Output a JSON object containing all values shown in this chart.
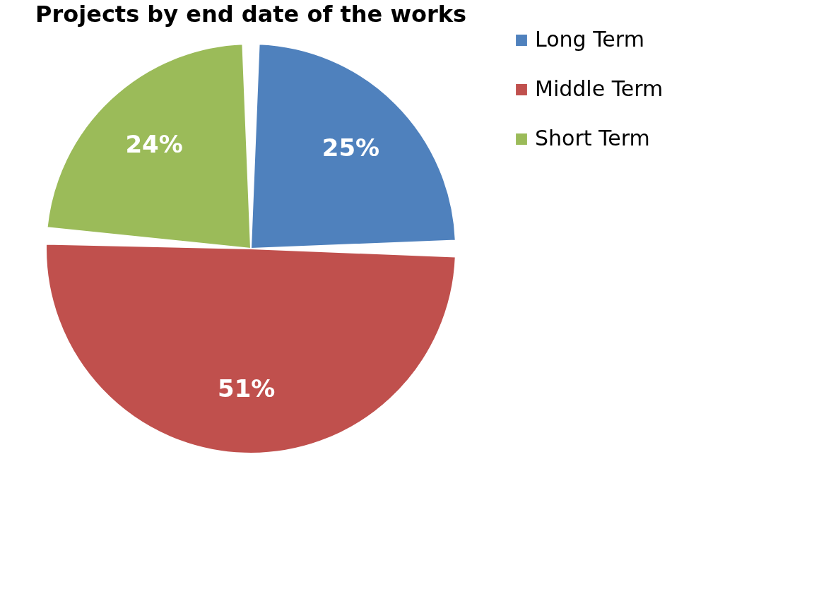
{
  "chart_data": {
    "type": "pie",
    "title": "Projects by end date of the works",
    "categories": [
      "Long Term",
      "Middle Term",
      "Short Term"
    ],
    "values": [
      25,
      51,
      24
    ],
    "colors": [
      "#4f81bd",
      "#c0504d",
      "#9bbb59"
    ],
    "value_labels": [
      "25%",
      "51%",
      "24%"
    ],
    "legend": "right"
  }
}
